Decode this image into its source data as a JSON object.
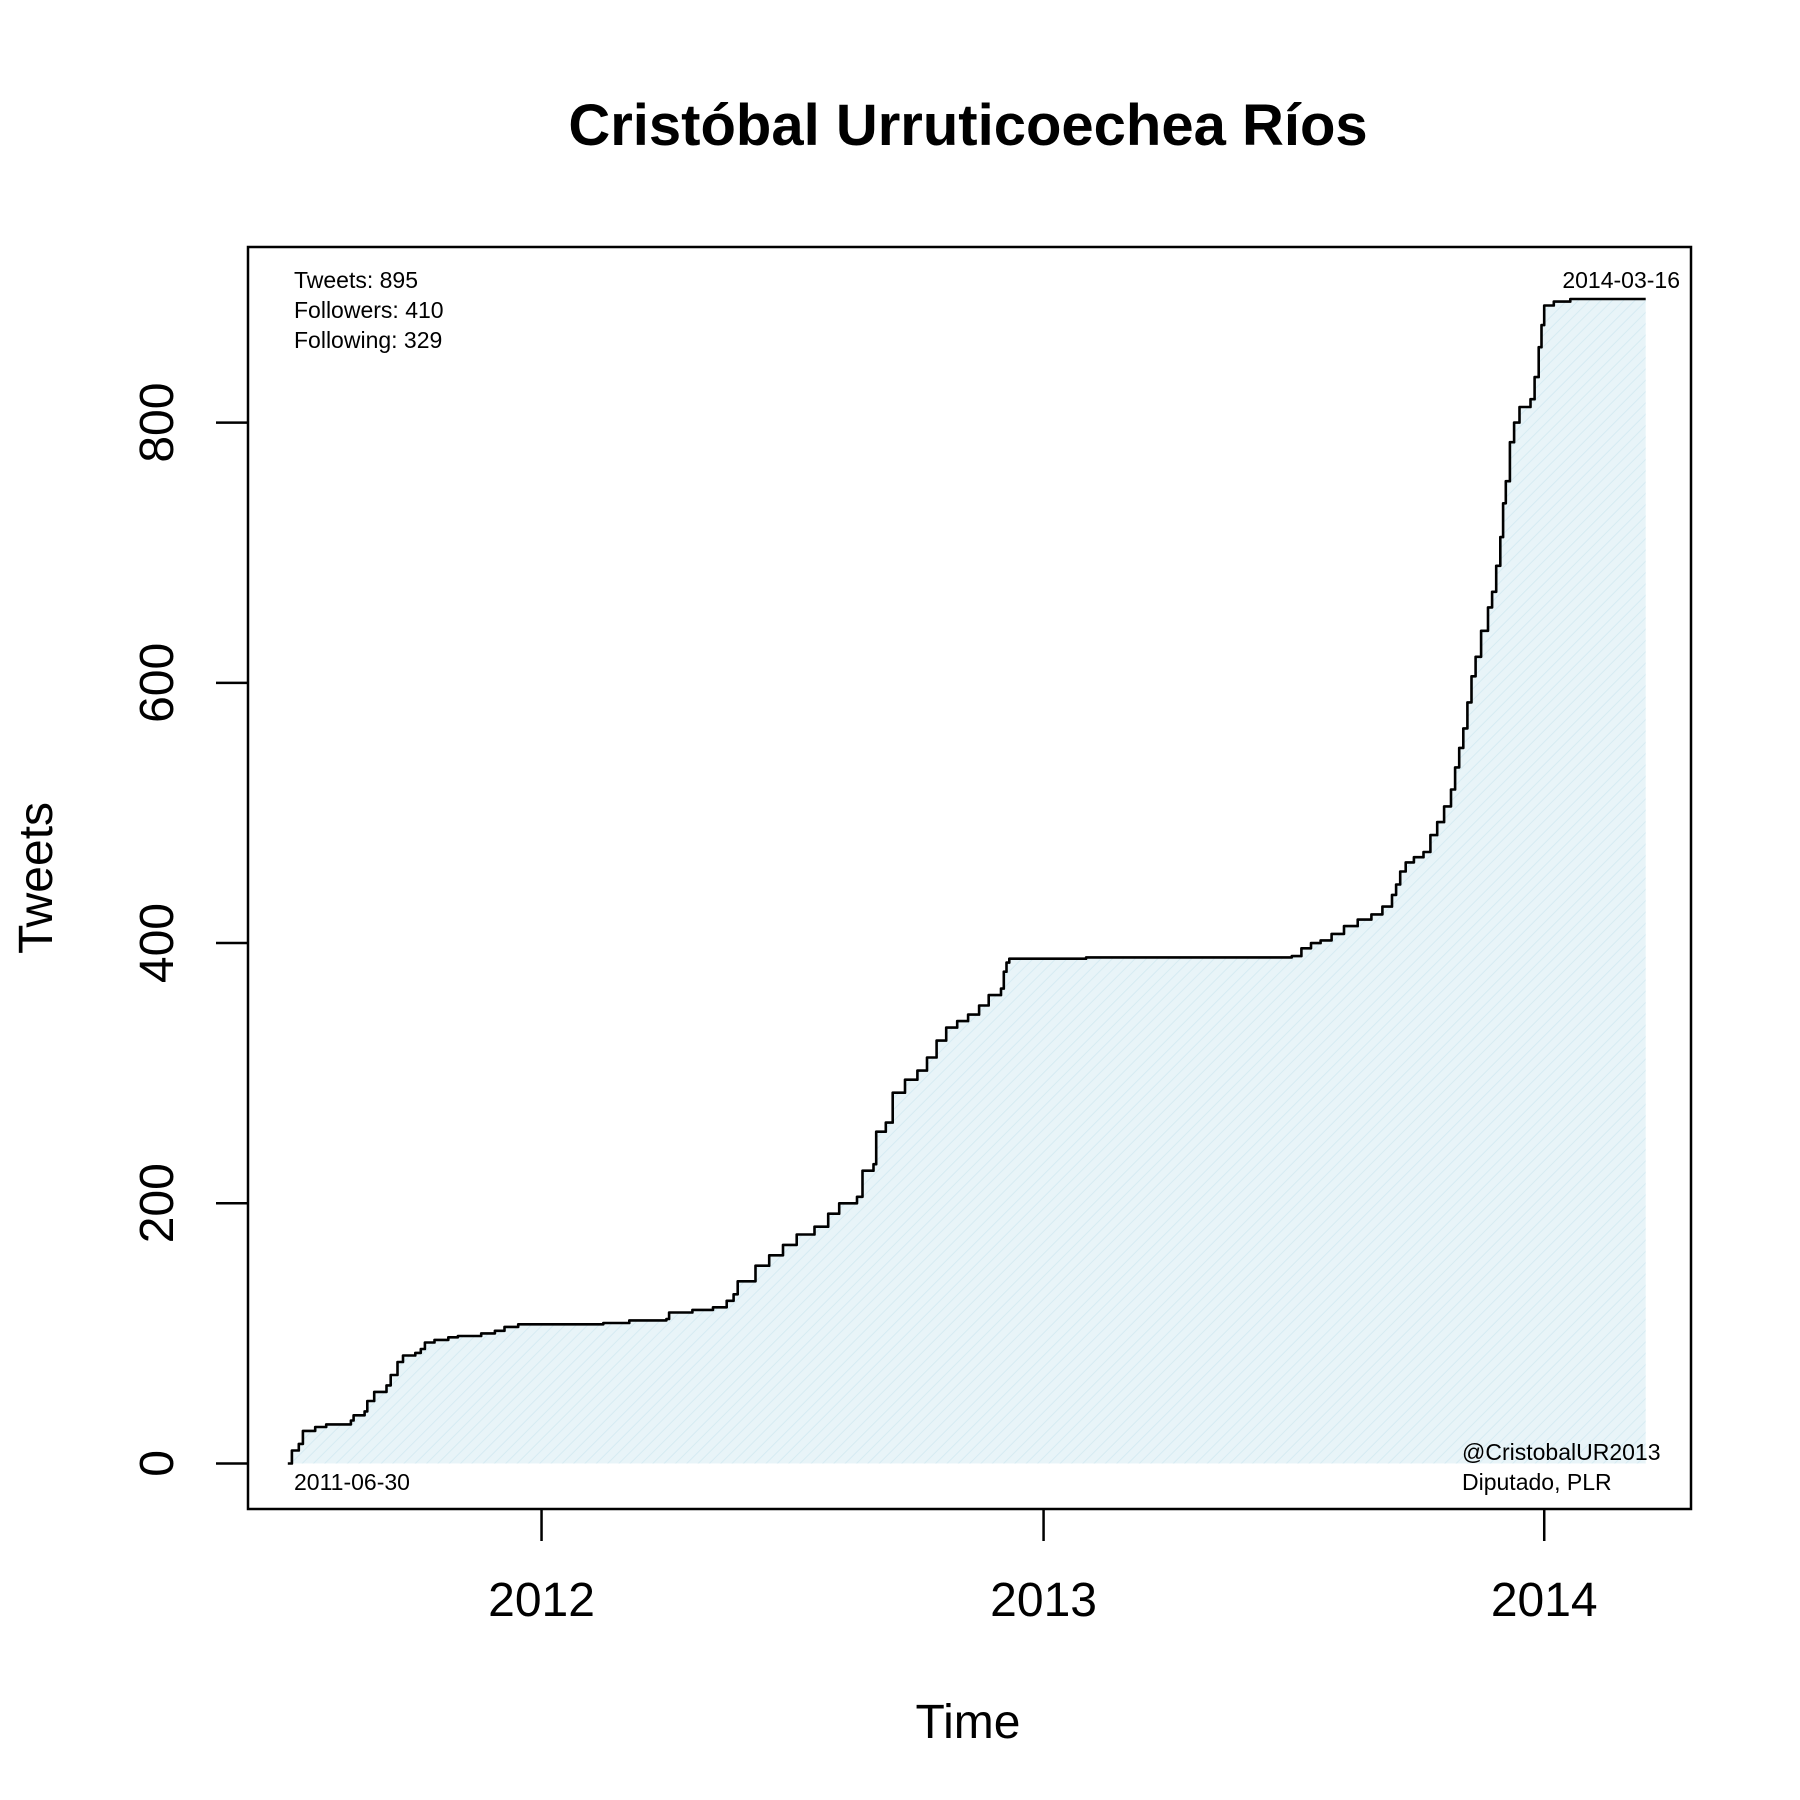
{
  "chart_data": {
    "type": "area",
    "title": "Cristóbal Urruticoechea Ríos",
    "xlabel": "Time",
    "ylabel": "Tweets",
    "xlim": [
      "2011-06-01",
      "2014-04-18"
    ],
    "ylim": [
      -35,
      935
    ],
    "x_ticks": [
      {
        "date": "2012-01-01",
        "label": "2012"
      },
      {
        "date": "2013-01-01",
        "label": "2013"
      },
      {
        "date": "2014-01-01",
        "label": "2014"
      }
    ],
    "y_ticks": [
      {
        "value": 0,
        "label": "0"
      },
      {
        "value": 200,
        "label": "200"
      },
      {
        "value": 400,
        "label": "400"
      },
      {
        "value": 600,
        "label": "600"
      },
      {
        "value": 800,
        "label": "800"
      }
    ],
    "grid": false,
    "fill_color": "#e8f4f8",
    "line_color": "#000000",
    "stats": [
      "Tweets: 895",
      "Followers: 410",
      "Following: 329"
    ],
    "start_date_label": "2011-06-30",
    "end_date_label": "2014-03-16",
    "account_lines": [
      "@CristobalUR2013",
      "Diputado, PLR"
    ],
    "series": [
      {
        "points": [
          [
            "2011-06-30",
            0
          ],
          [
            "2011-07-03",
            10
          ],
          [
            "2011-07-08",
            15
          ],
          [
            "2011-07-11",
            25
          ],
          [
            "2011-07-20",
            28
          ],
          [
            "2011-07-28",
            30
          ],
          [
            "2011-08-15",
            33
          ],
          [
            "2011-08-17",
            37
          ],
          [
            "2011-08-25",
            40
          ],
          [
            "2011-08-27",
            48
          ],
          [
            "2011-09-01",
            55
          ],
          [
            "2011-09-10",
            60
          ],
          [
            "2011-09-13",
            68
          ],
          [
            "2011-09-18",
            78
          ],
          [
            "2011-09-22",
            83
          ],
          [
            "2011-10-01",
            85
          ],
          [
            "2011-10-05",
            88
          ],
          [
            "2011-10-08",
            93
          ],
          [
            "2011-10-15",
            95
          ],
          [
            "2011-10-25",
            97
          ],
          [
            "2011-11-01",
            98
          ],
          [
            "2011-11-18",
            100
          ],
          [
            "2011-11-28",
            102
          ],
          [
            "2011-12-05",
            105
          ],
          [
            "2011-12-15",
            107
          ],
          [
            "2012-02-15",
            108
          ],
          [
            "2012-03-05",
            110
          ],
          [
            "2012-04-01",
            111
          ],
          [
            "2012-04-03",
            116
          ],
          [
            "2012-04-20",
            118
          ],
          [
            "2012-05-05",
            120
          ],
          [
            "2012-05-15",
            125
          ],
          [
            "2012-05-20",
            130
          ],
          [
            "2012-05-23",
            140
          ],
          [
            "2012-06-05",
            152
          ],
          [
            "2012-06-15",
            160
          ],
          [
            "2012-06-25",
            168
          ],
          [
            "2012-07-05",
            176
          ],
          [
            "2012-07-18",
            182
          ],
          [
            "2012-07-28",
            192
          ],
          [
            "2012-08-05",
            200
          ],
          [
            "2012-08-18",
            205
          ],
          [
            "2012-08-22",
            225
          ],
          [
            "2012-08-30",
            230
          ],
          [
            "2012-09-01",
            255
          ],
          [
            "2012-09-08",
            262
          ],
          [
            "2012-09-13",
            285
          ],
          [
            "2012-09-22",
            295
          ],
          [
            "2012-10-01",
            302
          ],
          [
            "2012-10-08",
            312
          ],
          [
            "2012-10-15",
            325
          ],
          [
            "2012-10-22",
            335
          ],
          [
            "2012-10-30",
            340
          ],
          [
            "2012-11-07",
            345
          ],
          [
            "2012-11-15",
            352
          ],
          [
            "2012-11-22",
            360
          ],
          [
            "2012-12-01",
            365
          ],
          [
            "2012-12-03",
            378
          ],
          [
            "2012-12-05",
            385
          ],
          [
            "2012-12-07",
            388
          ],
          [
            "2013-02-01",
            389
          ],
          [
            "2013-05-01",
            389
          ],
          [
            "2013-07-01",
            390
          ],
          [
            "2013-07-08",
            396
          ],
          [
            "2013-07-15",
            400
          ],
          [
            "2013-07-22",
            402
          ],
          [
            "2013-07-30",
            407
          ],
          [
            "2013-08-08",
            413
          ],
          [
            "2013-08-18",
            418
          ],
          [
            "2013-08-28",
            422
          ],
          [
            "2013-09-05",
            428
          ],
          [
            "2013-09-12",
            437
          ],
          [
            "2013-09-15",
            445
          ],
          [
            "2013-09-18",
            455
          ],
          [
            "2013-09-22",
            462
          ],
          [
            "2013-09-28",
            466
          ],
          [
            "2013-10-05",
            470
          ],
          [
            "2013-10-10",
            483
          ],
          [
            "2013-10-15",
            493
          ],
          [
            "2013-10-20",
            505
          ],
          [
            "2013-10-25",
            518
          ],
          [
            "2013-10-28",
            535
          ],
          [
            "2013-10-31",
            550
          ],
          [
            "2013-11-03",
            565
          ],
          [
            "2013-11-06",
            585
          ],
          [
            "2013-11-09",
            605
          ],
          [
            "2013-11-12",
            620
          ],
          [
            "2013-11-16",
            640
          ],
          [
            "2013-11-21",
            658
          ],
          [
            "2013-11-24",
            670
          ],
          [
            "2013-11-27",
            690
          ],
          [
            "2013-11-30",
            712
          ],
          [
            "2013-12-02",
            738
          ],
          [
            "2013-12-04",
            755
          ],
          [
            "2013-12-07",
            785
          ],
          [
            "2013-12-10",
            800
          ],
          [
            "2013-12-14",
            812
          ],
          [
            "2013-12-22",
            818
          ],
          [
            "2013-12-25",
            835
          ],
          [
            "2013-12-28",
            858
          ],
          [
            "2013-12-30",
            875
          ],
          [
            "2014-01-01",
            890
          ],
          [
            "2014-01-08",
            893
          ],
          [
            "2014-01-20",
            895
          ],
          [
            "2014-03-16",
            895
          ]
        ]
      }
    ]
  }
}
